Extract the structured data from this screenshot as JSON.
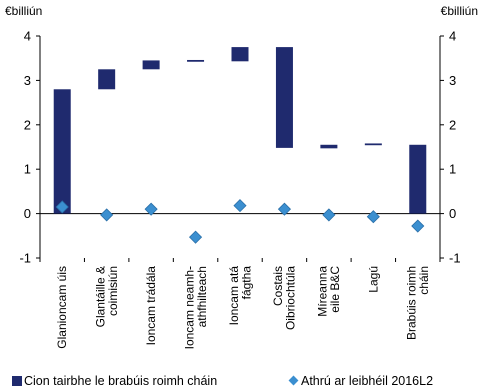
{
  "chart_data": {
    "type": "bar",
    "subtype": "waterfall",
    "unit_left": "€billiún",
    "unit_right": "€billiún",
    "ylim": [
      -1,
      4
    ],
    "yticks": [
      "-1",
      "0",
      "1",
      "2",
      "3",
      "4"
    ],
    "grid": false,
    "legend_position": "bottom",
    "categories": [
      [
        "Glanioncam úis"
      ],
      [
        "Glantáille &",
        "coimisiún"
      ],
      [
        "Ioncam trádála"
      ],
      [
        "Ioncam neamh-",
        "athfhilteach"
      ],
      [
        "Ioncam atá",
        "fágtha"
      ],
      [
        "Costais",
        "Oibriochtúla"
      ],
      [
        "Míreanna",
        "eile B&C"
      ],
      [
        "Lagú"
      ],
      [
        "Brabúis roimh",
        "cháin"
      ]
    ],
    "series": [
      {
        "name": "Cion tairbhe le brabúis roimh cháin",
        "kind": "floating-bar",
        "color": "#1f2a6e",
        "ranges": [
          [
            0,
            2.8
          ],
          [
            2.8,
            3.25
          ],
          [
            3.25,
            3.45
          ],
          [
            3.42,
            3.46
          ],
          [
            3.43,
            3.75
          ],
          [
            1.48,
            3.75
          ],
          [
            1.47,
            1.55
          ],
          [
            1.54,
            1.58
          ],
          [
            0,
            1.55
          ]
        ]
      },
      {
        "name": "Athrú ar leibhéil 2016L2",
        "kind": "marker",
        "color": "#3b8fd0",
        "values": [
          0.15,
          -0.03,
          0.1,
          -0.53,
          0.18,
          0.1,
          -0.03,
          -0.07,
          -0.28
        ]
      }
    ]
  }
}
